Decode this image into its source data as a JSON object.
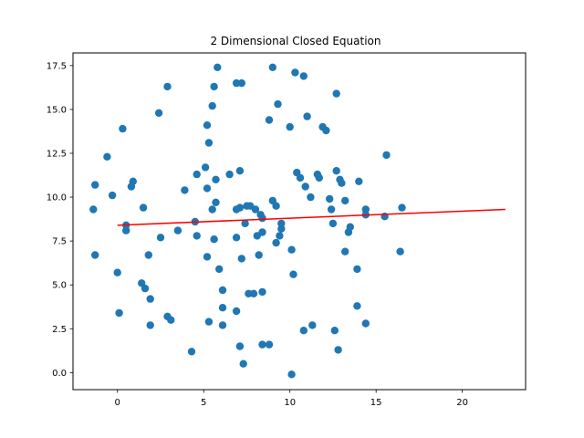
{
  "chart_data": {
    "type": "scatter",
    "title": "2 Dimensional Closed Equation",
    "xlabel": "",
    "ylabel": "",
    "xlim": [
      -2.58,
      23.67
    ],
    "ylim": [
      -0.97,
      18.22
    ],
    "xticks": [
      0,
      5,
      10,
      15,
      20
    ],
    "yticks": [
      0.0,
      2.5,
      5.0,
      7.5,
      10.0,
      12.5,
      15.0,
      17.5
    ],
    "xtick_labels": [
      "0",
      "5",
      "10",
      "15",
      "20"
    ],
    "ytick_labels": [
      "0.0",
      "2.5",
      "5.0",
      "7.5",
      "10.0",
      "12.5",
      "15.0",
      "17.5"
    ],
    "grid": false,
    "point_color": "#1f77b4",
    "line_color": "#ff0000",
    "points": [
      {
        "x": -1.3,
        "y": 10.7
      },
      {
        "x": -1.4,
        "y": 9.3
      },
      {
        "x": -0.6,
        "y": 12.3
      },
      {
        "x": -0.3,
        "y": 10.1
      },
      {
        "x": -1.3,
        "y": 6.7
      },
      {
        "x": 0.3,
        "y": 13.9
      },
      {
        "x": 0.5,
        "y": 8.1
      },
      {
        "x": 0.5,
        "y": 8.4
      },
      {
        "x": 0.8,
        "y": 10.6
      },
      {
        "x": 0.9,
        "y": 10.9
      },
      {
        "x": 0.0,
        "y": 5.7
      },
      {
        "x": 0.1,
        "y": 3.4
      },
      {
        "x": 1.5,
        "y": 9.4
      },
      {
        "x": 1.4,
        "y": 5.1
      },
      {
        "x": 1.6,
        "y": 4.8
      },
      {
        "x": 1.8,
        "y": 6.7
      },
      {
        "x": 1.9,
        "y": 4.2
      },
      {
        "x": 1.9,
        "y": 2.7
      },
      {
        "x": 2.4,
        "y": 14.8
      },
      {
        "x": 2.9,
        "y": 16.3
      },
      {
        "x": 2.5,
        "y": 7.7
      },
      {
        "x": 2.9,
        "y": 3.2
      },
      {
        "x": 3.1,
        "y": 3.0
      },
      {
        "x": 3.5,
        "y": 8.1
      },
      {
        "x": 3.9,
        "y": 10.4
      },
      {
        "x": 4.3,
        "y": 1.2
      },
      {
        "x": 4.6,
        "y": 11.3
      },
      {
        "x": 4.5,
        "y": 8.6
      },
      {
        "x": 4.6,
        "y": 7.8
      },
      {
        "x": 5.2,
        "y": 14.1
      },
      {
        "x": 5.1,
        "y": 11.7
      },
      {
        "x": 5.2,
        "y": 10.5
      },
      {
        "x": 5.3,
        "y": 13.1
      },
      {
        "x": 5.5,
        "y": 15.2
      },
      {
        "x": 5.6,
        "y": 16.3
      },
      {
        "x": 5.8,
        "y": 17.4
      },
      {
        "x": 5.7,
        "y": 11.0
      },
      {
        "x": 5.7,
        "y": 9.7
      },
      {
        "x": 5.5,
        "y": 9.3
      },
      {
        "x": 5.6,
        "y": 7.6
      },
      {
        "x": 5.2,
        "y": 6.6
      },
      {
        "x": 5.9,
        "y": 5.9
      },
      {
        "x": 5.3,
        "y": 2.9
      },
      {
        "x": 6.1,
        "y": 4.7
      },
      {
        "x": 6.1,
        "y": 3.7
      },
      {
        "x": 6.1,
        "y": 2.7
      },
      {
        "x": 6.5,
        "y": 11.3
      },
      {
        "x": 6.9,
        "y": 16.5
      },
      {
        "x": 7.2,
        "y": 16.5
      },
      {
        "x": 7.1,
        "y": 11.5
      },
      {
        "x": 6.9,
        "y": 9.3
      },
      {
        "x": 7.1,
        "y": 9.4
      },
      {
        "x": 6.9,
        "y": 7.7
      },
      {
        "x": 7.2,
        "y": 6.5
      },
      {
        "x": 6.9,
        "y": 3.5
      },
      {
        "x": 7.1,
        "y": 1.5
      },
      {
        "x": 7.4,
        "y": 8.5
      },
      {
        "x": 7.5,
        "y": 9.5
      },
      {
        "x": 7.7,
        "y": 9.5
      },
      {
        "x": 7.6,
        "y": 4.5
      },
      {
        "x": 7.9,
        "y": 4.5
      },
      {
        "x": 7.3,
        "y": 0.5
      },
      {
        "x": 8.0,
        "y": 9.3
      },
      {
        "x": 8.1,
        "y": 7.8
      },
      {
        "x": 8.2,
        "y": 6.7
      },
      {
        "x": 8.3,
        "y": 9.0
      },
      {
        "x": 8.4,
        "y": 8.8
      },
      {
        "x": 8.4,
        "y": 8.0
      },
      {
        "x": 8.4,
        "y": 4.6
      },
      {
        "x": 8.4,
        "y": 1.6
      },
      {
        "x": 8.8,
        "y": 1.6
      },
      {
        "x": 8.8,
        "y": 14.4
      },
      {
        "x": 9.0,
        "y": 17.4
      },
      {
        "x": 9.0,
        "y": 9.8
      },
      {
        "x": 9.2,
        "y": 9.5
      },
      {
        "x": 9.3,
        "y": 15.3
      },
      {
        "x": 9.2,
        "y": 7.4
      },
      {
        "x": 9.4,
        "y": 7.8
      },
      {
        "x": 9.5,
        "y": 8.2
      },
      {
        "x": 9.5,
        "y": 8.5
      },
      {
        "x": 10.0,
        "y": 14.0
      },
      {
        "x": 10.1,
        "y": 7.0
      },
      {
        "x": 10.2,
        "y": 5.6
      },
      {
        "x": 10.1,
        "y": -0.1
      },
      {
        "x": 10.3,
        "y": 17.1
      },
      {
        "x": 10.4,
        "y": 11.4
      },
      {
        "x": 10.6,
        "y": 11.1
      },
      {
        "x": 10.8,
        "y": 16.9
      },
      {
        "x": 11.0,
        "y": 14.6
      },
      {
        "x": 10.9,
        "y": 10.6
      },
      {
        "x": 11.2,
        "y": 10.0
      },
      {
        "x": 11.6,
        "y": 11.3
      },
      {
        "x": 11.7,
        "y": 11.1
      },
      {
        "x": 11.9,
        "y": 14.0
      },
      {
        "x": 12.1,
        "y": 13.8
      },
      {
        "x": 12.7,
        "y": 15.9
      },
      {
        "x": 12.7,
        "y": 11.5
      },
      {
        "x": 12.9,
        "y": 11.0
      },
      {
        "x": 13.0,
        "y": 10.8
      },
      {
        "x": 13.2,
        "y": 9.8
      },
      {
        "x": 12.3,
        "y": 9.9
      },
      {
        "x": 12.4,
        "y": 9.3
      },
      {
        "x": 12.5,
        "y": 8.5
      },
      {
        "x": 13.5,
        "y": 8.3
      },
      {
        "x": 13.4,
        "y": 8.0
      },
      {
        "x": 13.2,
        "y": 6.9
      },
      {
        "x": 13.9,
        "y": 5.9
      },
      {
        "x": 13.9,
        "y": 3.8
      },
      {
        "x": 11.3,
        "y": 2.7
      },
      {
        "x": 10.8,
        "y": 2.4
      },
      {
        "x": 12.6,
        "y": 2.4
      },
      {
        "x": 12.8,
        "y": 1.3
      },
      {
        "x": 14.0,
        "y": 10.9
      },
      {
        "x": 14.4,
        "y": 9.3
      },
      {
        "x": 14.4,
        "y": 9.0
      },
      {
        "x": 14.4,
        "y": 2.8
      },
      {
        "x": 15.6,
        "y": 12.4
      },
      {
        "x": 15.5,
        "y": 8.9
      },
      {
        "x": 16.5,
        "y": 9.4
      },
      {
        "x": 16.4,
        "y": 6.9
      }
    ],
    "line": {
      "x": [
        0,
        22.5
      ],
      "y": [
        8.4,
        9.3
      ]
    }
  }
}
